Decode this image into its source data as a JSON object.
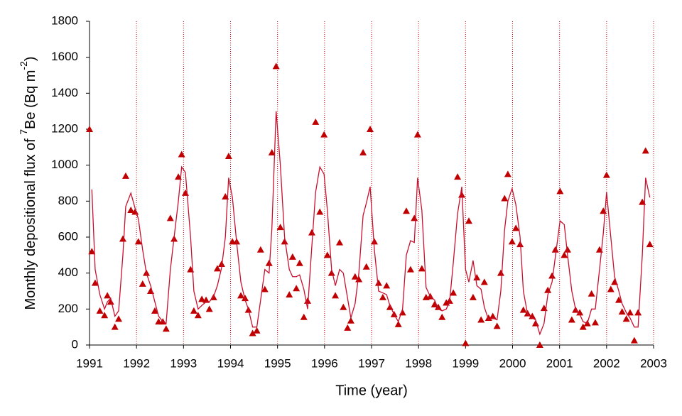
{
  "chart_data": {
    "type": "scatter",
    "xlabel": "Time (year)",
    "ylabel": [
      "Monthly depositional flux of ",
      "7",
      "Be (Bq m",
      "-2",
      ")"
    ],
    "xlim": [
      1991,
      2003
    ],
    "xticks": [
      1991,
      1992,
      1993,
      1994,
      1995,
      1996,
      1997,
      1998,
      1999,
      2000,
      2001,
      2002,
      2003
    ],
    "ylim": [
      0,
      1800
    ],
    "yticks": [
      0,
      200,
      400,
      600,
      800,
      1000,
      1200,
      1400,
      1600,
      1800
    ],
    "grid": "x",
    "grid_color": "#c00000",
    "x": [
      1991.0,
      1991.05,
      1991.12,
      1991.22,
      1991.32,
      1991.38,
      1991.45,
      1991.54,
      1991.62,
      1991.71,
      1991.77,
      1991.88,
      1991.97,
      1992.04,
      1992.13,
      1992.21,
      1992.3,
      1992.39,
      1992.47,
      1992.56,
      1992.63,
      1992.72,
      1992.8,
      1992.89,
      1992.96,
      1993.04,
      1993.15,
      1993.22,
      1993.31,
      1993.39,
      1993.48,
      1993.55,
      1993.64,
      1993.72,
      1993.81,
      1993.89,
      1993.96,
      1994.04,
      1994.13,
      1994.22,
      1994.31,
      1994.38,
      1994.47,
      1994.56,
      1994.64,
      1994.73,
      1994.82,
      1994.88,
      1994.97,
      1995.06,
      1995.15,
      1995.25,
      1995.32,
      1995.4,
      1995.47,
      1995.56,
      1995.64,
      1995.73,
      1995.81,
      1995.9,
      1995.99,
      1996.06,
      1996.15,
      1996.23,
      1996.32,
      1996.4,
      1996.49,
      1996.56,
      1996.65,
      1996.73,
      1996.82,
      1996.89,
      1996.97,
      1997.06,
      1997.15,
      1997.24,
      1997.32,
      1997.39,
      1997.48,
      1997.57,
      1997.66,
      1997.74,
      1997.83,
      1997.91,
      1997.98,
      1998.07,
      1998.16,
      1998.25,
      1998.34,
      1998.42,
      1998.5,
      1998.59,
      1998.66,
      1998.74,
      1998.83,
      1998.92,
      1999.0,
      1999.07,
      1999.16,
      1999.24,
      1999.33,
      1999.4,
      1999.49,
      1999.58,
      1999.67,
      1999.75,
      1999.83,
      1999.9,
      1999.99,
      2000.07,
      2000.16,
      2000.23,
      2000.32,
      2000.42,
      2000.49,
      2000.58,
      2000.67,
      2000.75,
      2000.84,
      2000.91,
      2001.01,
      2001.1,
      2001.17,
      2001.26,
      2001.34,
      2001.43,
      2001.5,
      2001.59,
      2001.68,
      2001.76,
      2001.85,
      2001.93,
      2002.0,
      2002.09,
      2002.17,
      2002.26,
      2002.33,
      2002.42,
      2002.5,
      2002.59,
      2002.67,
      2002.76,
      2002.83,
      2002.92
    ],
    "series": [
      {
        "mode": "markers",
        "marker": "triangle",
        "color": "#c00000",
        "values": [
          1200,
          520,
          345,
          190,
          165,
          275,
          240,
          100,
          145,
          590,
          940,
          750,
          740,
          575,
          340,
          400,
          300,
          190,
          130,
          130,
          90,
          705,
          590,
          935,
          1060,
          845,
          420,
          190,
          165,
          255,
          250,
          200,
          265,
          425,
          450,
          825,
          1050,
          575,
          575,
          275,
          260,
          195,
          65,
          80,
          530,
          310,
          455,
          1070,
          1550,
          655,
          575,
          280,
          490,
          315,
          455,
          155,
          245,
          625,
          1240,
          740,
          1170,
          500,
          400,
          275,
          570,
          210,
          95,
          135,
          380,
          365,
          1070,
          435,
          1200,
          575,
          345,
          265,
          330,
          210,
          170,
          115,
          180,
          745,
          420,
          705,
          1170,
          425,
          265,
          270,
          225,
          210,
          155,
          235,
          245,
          290,
          935,
          835,
          10,
          690,
          265,
          375,
          140,
          350,
          150,
          160,
          105,
          400,
          815,
          950,
          575,
          650,
          560,
          195,
          175,
          160,
          120,
          0,
          205,
          305,
          385,
          530,
          855,
          500,
          530,
          140,
          195,
          180,
          100,
          120,
          285,
          125,
          530,
          745,
          945,
          310,
          350,
          250,
          185,
          145,
          180,
          25,
          180,
          795,
          1080,
          560
        ]
      },
      {
        "mode": "line",
        "color": "#c8102e",
        "values": [
          null,
          865,
          420,
          280,
          200,
          240,
          260,
          160,
          190,
          500,
          770,
          845,
          760,
          700,
          530,
          400,
          330,
          240,
          160,
          130,
          120,
          420,
          600,
          800,
          990,
          960,
          600,
          300,
          200,
          220,
          240,
          240,
          270,
          330,
          430,
          600,
          930,
          820,
          570,
          350,
          250,
          200,
          100,
          100,
          250,
          420,
          400,
          650,
          1300,
          1000,
          600,
          420,
          380,
          380,
          390,
          310,
          200,
          550,
          850,
          990,
          950,
          750,
          420,
          330,
          420,
          400,
          260,
          150,
          230,
          400,
          720,
          790,
          880,
          530,
          300,
          290,
          280,
          220,
          170,
          130,
          200,
          500,
          580,
          570,
          930,
          750,
          320,
          270,
          250,
          200,
          190,
          200,
          240,
          460,
          730,
          880,
          420,
          350,
          470,
          330,
          310,
          210,
          140,
          150,
          140,
          300,
          640,
          800,
          870,
          780,
          600,
          300,
          170,
          150,
          140,
          60,
          120,
          280,
          350,
          490,
          690,
          670,
          500,
          300,
          200,
          170,
          130,
          120,
          200,
          200,
          420,
          620,
          850,
          600,
          380,
          300,
          230,
          180,
          150,
          100,
          100,
          500,
          930,
          820
        ]
      }
    ]
  }
}
